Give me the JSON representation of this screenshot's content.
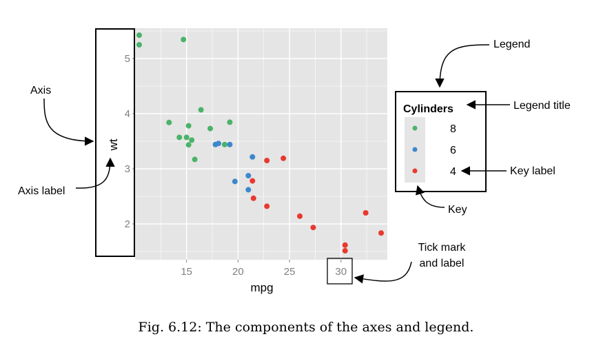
{
  "chart_data": {
    "type": "scatter",
    "title": "",
    "xlabel": "mpg",
    "ylabel": "wt",
    "xlim": [
      10,
      34.5
    ],
    "ylim": [
      1.35,
      5.55
    ],
    "x_ticks": [
      15,
      20,
      25,
      30
    ],
    "y_ticks": [
      2,
      3,
      4,
      5
    ],
    "grid": true,
    "legend": {
      "title": "Cylinders",
      "placement": "right",
      "entries": [
        {
          "label": "8",
          "color": "#4cb26a"
        },
        {
          "label": "6",
          "color": "#3d88cc"
        },
        {
          "label": "4",
          "color": "#e8392e"
        }
      ]
    },
    "series": [
      {
        "name": "8",
        "color": "#4cb26a",
        "points": [
          [
            10.4,
            5.424
          ],
          [
            10.4,
            5.25
          ],
          [
            14.7,
            5.345
          ],
          [
            13.3,
            3.84
          ],
          [
            14.3,
            3.57
          ],
          [
            15.0,
            3.57
          ],
          [
            15.2,
            3.78
          ],
          [
            15.2,
            3.435
          ],
          [
            15.5,
            3.52
          ],
          [
            15.8,
            3.17
          ],
          [
            16.4,
            4.07
          ],
          [
            17.3,
            3.73
          ],
          [
            18.7,
            3.44
          ],
          [
            19.2,
            3.845
          ]
        ]
      },
      {
        "name": "6",
        "color": "#3d88cc",
        "points": [
          [
            17.8,
            3.44
          ],
          [
            18.1,
            3.46
          ],
          [
            19.2,
            3.44
          ],
          [
            19.7,
            2.77
          ],
          [
            21.0,
            2.62
          ],
          [
            21.0,
            2.875
          ],
          [
            21.4,
            3.215
          ]
        ]
      },
      {
        "name": "4",
        "color": "#e8392e",
        "points": [
          [
            21.4,
            2.78
          ],
          [
            21.5,
            2.465
          ],
          [
            22.8,
            3.15
          ],
          [
            22.8,
            2.32
          ],
          [
            24.4,
            3.19
          ],
          [
            26.0,
            2.14
          ],
          [
            27.3,
            1.935
          ],
          [
            30.4,
            1.615
          ],
          [
            30.4,
            1.513
          ],
          [
            32.4,
            2.2
          ],
          [
            33.9,
            1.835
          ]
        ]
      }
    ]
  },
  "annotations": {
    "axis": "Axis",
    "axis_label": "Axis label",
    "legend": "Legend",
    "legend_title": "Legend title",
    "key_label": "Key label",
    "key": "Key",
    "tick_line1": "Tick mark",
    "tick_line2": "and label"
  },
  "caption": "Fig. 6.12: The components of the axes and legend."
}
